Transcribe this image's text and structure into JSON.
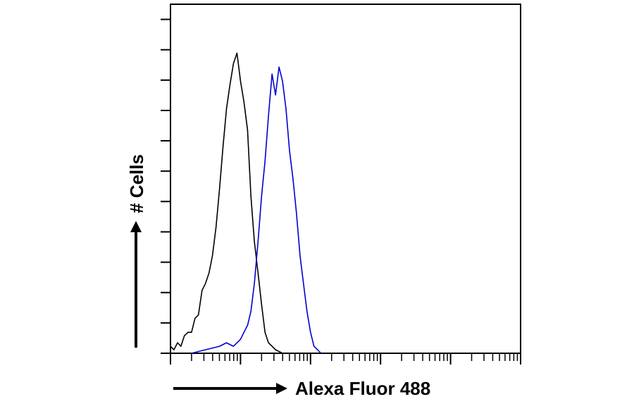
{
  "chart_data": {
    "type": "line",
    "title": "",
    "xlabel": "Alexa Fluor 488",
    "ylabel": "# Cells",
    "x_scale": "log",
    "xlim": [
      1,
      100000
    ],
    "ylim": [
      0,
      100
    ],
    "grid": false,
    "legend": "none",
    "x_ticks": "log decades, unlabeled",
    "y_ticks": "linear, unlabeled",
    "series": [
      {
        "color": "#000000",
        "x": [
          1,
          1.12,
          1.26,
          1.41,
          1.58,
          1.78,
          2.0,
          2.24,
          2.51,
          2.82,
          3.16,
          3.55,
          3.98,
          4.47,
          5.01,
          5.62,
          6.31,
          7.08,
          7.94,
          8.91,
          10.0,
          11.2,
          12.6,
          14.1,
          15.8,
          17.8,
          20.0,
          22.4,
          25.1,
          28.2,
          31.6,
          35.5,
          39.8
        ],
        "y": [
          2,
          1,
          3,
          2,
          5,
          6,
          6,
          10,
          11,
          18,
          20,
          23,
          28,
          36,
          47,
          59,
          70,
          77,
          83,
          86,
          78,
          72,
          64,
          45,
          32,
          23,
          14,
          6,
          3,
          2,
          1,
          0.5,
          0
        ]
      },
      {
        "color": "#0000d0",
        "x": [
          2.0,
          2.51,
          3.16,
          3.98,
          5.01,
          6.31,
          7.94,
          10.0,
          11.2,
          12.6,
          14.1,
          15.8,
          17.8,
          20.0,
          22.4,
          25.1,
          28.2,
          31.6,
          35.5,
          39.8,
          44.7,
          50.1,
          56.2,
          63.1,
          70.8,
          79.4,
          89.1,
          100,
          112,
          126,
          141
        ],
        "y": [
          0,
          0.5,
          1,
          1.5,
          2,
          3,
          2,
          4,
          6,
          8,
          12,
          20,
          32,
          45,
          55,
          68,
          80,
          74,
          82,
          78,
          70,
          58,
          50,
          40,
          28,
          20,
          12,
          6,
          2,
          1,
          0
        ]
      }
    ]
  },
  "colors": {
    "axis": "#000000",
    "background": "#ffffff"
  },
  "icons": {
    "y_arrow": "arrow-up-icon",
    "x_arrow": "arrow-right-icon"
  }
}
